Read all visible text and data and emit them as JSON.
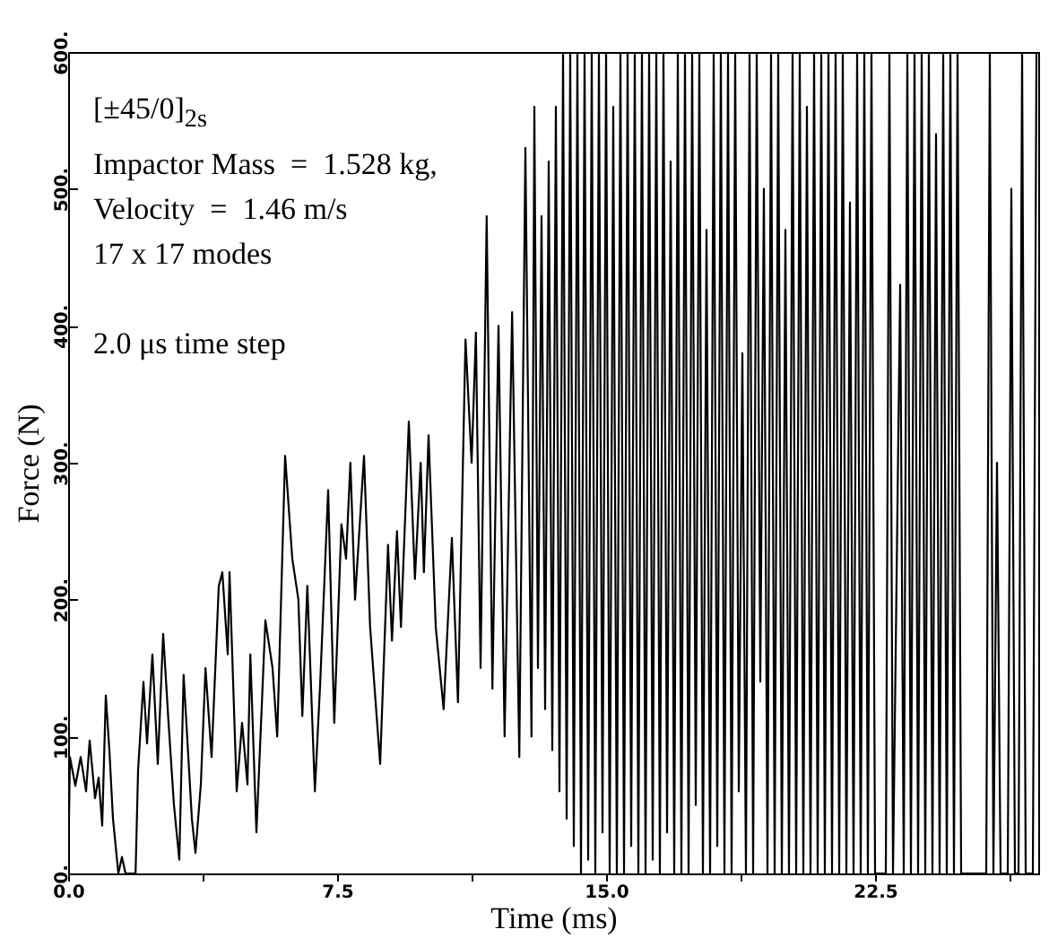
{
  "chart_data": {
    "type": "line",
    "xlabel": "Time (ms)",
    "ylabel": "Force (N)",
    "annotations": [
      "[±45/0]$_{2s}$",
      "Impactor Mass  =  1.528 kg,",
      "Velocity  =  1.46 m/s",
      "17 x 17 modes",
      "2.0 μs time step"
    ],
    "xlim": [
      0,
      27.05
    ],
    "ylim": [
      0,
      600
    ],
    "xticks": [
      {
        "value": 0,
        "label": "0.0"
      },
      {
        "value": 3.75,
        "label": null
      },
      7.5,
      {
        "value": 11.25,
        "label": null
      },
      {
        "value": 15,
        "label": "15.0"
      },
      {
        "value": 18.75,
        "label": null
      },
      22.5,
      {
        "value": 26.25,
        "label": null
      }
    ],
    "yticks": [
      {
        "value": 0,
        "label": "0."
      },
      {
        "value": 100,
        "label": "100."
      },
      {
        "value": 200,
        "label": "200."
      },
      {
        "value": 300,
        "label": "300."
      },
      {
        "value": 400,
        "label": "400."
      },
      {
        "value": 500,
        "label": "500."
      },
      {
        "value": 600,
        "label": "600."
      }
    ],
    "grid": false,
    "marker": "none",
    "line_style": "solid",
    "series": [
      {
        "color": "#000000",
        "x": [
          0,
          0.05,
          0.2,
          0.35,
          0.5,
          0.6,
          0.75,
          0.85,
          0.95,
          1.05,
          1.15,
          1.25,
          1.4,
          1.5,
          1.6,
          1.88,
          1.95,
          2.1,
          2.2,
          2.35,
          2.5,
          2.65,
          2.8,
          2.95,
          3.1,
          3.22,
          3.45,
          3.55,
          3.7,
          3.83,
          4.0,
          4.2,
          4.3,
          4.45,
          4.5,
          4.7,
          4.85,
          5.0,
          5.08,
          5.25,
          5.5,
          5.7,
          5.83,
          6.05,
          6.25,
          6.42,
          6.53,
          6.67,
          6.88,
          7.03,
          7.25,
          7.42,
          7.62,
          7.75,
          7.87,
          8.0,
          8.25,
          8.42,
          8.7,
          8.92,
          9.03,
          9.17,
          9.28,
          9.5,
          9.67,
          9.83,
          9.92,
          10.05,
          10.25,
          10.47,
          10.7,
          10.87,
          11.08,
          11.25,
          11.37,
          11.5,
          11.67,
          11.83,
          12.0,
          12.17,
          12.38,
          12.58,
          12.75,
          12.92,
          13.0,
          13.1,
          13.2,
          13.3,
          13.4,
          13.5,
          13.6,
          13.7,
          13.8,
          13.9,
          14.0,
          14.1,
          14.2,
          14.3,
          14.4,
          14.5,
          14.6,
          14.7,
          14.8,
          14.9,
          15.0,
          15.1,
          15.2,
          15.3,
          15.4,
          15.5,
          15.6,
          15.7,
          15.8,
          15.9,
          16.0,
          16.1,
          16.2,
          16.3,
          16.4,
          16.5,
          16.6,
          16.7,
          16.8,
          16.9,
          17.0,
          17.1,
          17.2,
          17.3,
          17.4,
          17.5,
          17.6,
          17.7,
          17.8,
          17.9,
          18.0,
          18.1,
          18.2,
          18.3,
          18.4,
          18.5,
          18.6,
          18.7,
          18.8,
          18.9,
          19.0,
          19.1,
          19.2,
          19.3,
          19.4,
          19.5,
          19.6,
          19.7,
          19.8,
          19.9,
          20.0,
          20.1,
          20.2,
          20.3,
          20.4,
          20.5,
          20.6,
          20.7,
          20.8,
          20.9,
          21.0,
          21.1,
          21.2,
          21.3,
          21.4,
          21.5,
          21.6,
          21.7,
          21.8,
          21.9,
          22.0,
          22.1,
          22.2,
          22.3,
          22.4,
          22.5,
          22.8,
          22.9,
          23.0,
          23.2,
          23.3,
          23.4,
          23.5,
          23.6,
          23.7,
          23.8,
          23.9,
          24.0,
          24.1,
          24.2,
          24.3,
          24.4,
          24.5,
          24.6,
          24.7,
          24.8,
          24.9,
          25.0,
          25.6,
          25.7,
          25.8,
          25.9,
          26.0,
          26.2,
          26.3,
          26.4,
          26.5,
          26.6,
          26.7,
          26.9,
          27.0
        ],
        "values": [
          0,
          85,
          64,
          85,
          60,
          97,
          55,
          70,
          35,
          130,
          90,
          40,
          0,
          12,
          0,
          0,
          75,
          140,
          95,
          160,
          80,
          175,
          110,
          50,
          10,
          145,
          40,
          15,
          65,
          150,
          85,
          210,
          220,
          160,
          220,
          60,
          110,
          65,
          160,
          30,
          185,
          150,
          100,
          305,
          230,
          200,
          115,
          210,
          60,
          140,
          280,
          110,
          255,
          230,
          300,
          200,
          305,
          180,
          80,
          240,
          170,
          250,
          180,
          330,
          215,
          300,
          220,
          320,
          180,
          120,
          245,
          125,
          390,
          300,
          395,
          150,
          480,
          135,
          400,
          100,
          410,
          85,
          530,
          100,
          560,
          150,
          480,
          120,
          520,
          90,
          560,
          60,
          600,
          40,
          600,
          20,
          600,
          0,
          600,
          10,
          600,
          0,
          600,
          30,
          600,
          0,
          560,
          0,
          600,
          0,
          600,
          20,
          600,
          0,
          600,
          0,
          600,
          10,
          600,
          0,
          600,
          30,
          520,
          0,
          600,
          0,
          600,
          0,
          600,
          50,
          600,
          0,
          470,
          0,
          600,
          20,
          600,
          0,
          600,
          0,
          600,
          60,
          380,
          0,
          600,
          0,
          600,
          140,
          500,
          0,
          600,
          0,
          600,
          0,
          470,
          0,
          600,
          0,
          600,
          0,
          560,
          0,
          600,
          0,
          600,
          0,
          600,
          0,
          600,
          0,
          600,
          0,
          490,
          0,
          600,
          0,
          600,
          0,
          600,
          0,
          0,
          600,
          0,
          430,
          0,
          600,
          0,
          600,
          0,
          600,
          0,
          600,
          0,
          540,
          0,
          600,
          0,
          600,
          0,
          600,
          0,
          0,
          0,
          600,
          0,
          300,
          0,
          0,
          500,
          0,
          0,
          600,
          0,
          0,
          600
        ]
      }
    ]
  }
}
